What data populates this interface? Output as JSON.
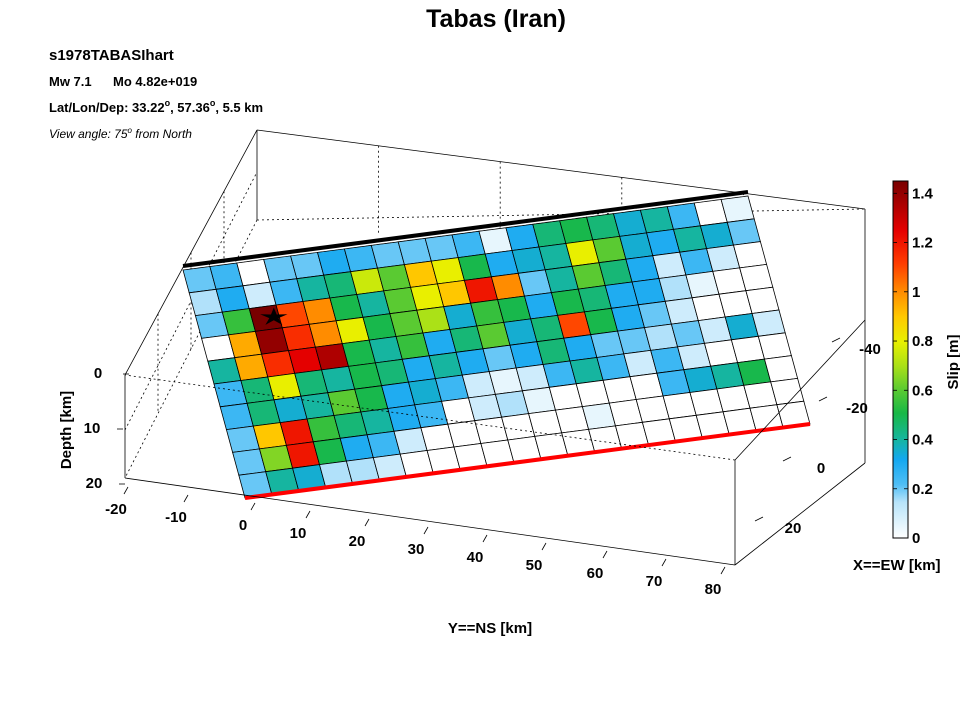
{
  "header": {
    "title": "Tabas (Iran)",
    "event_name": "s1978TABASIhart",
    "magnitude": "Mw 7.1",
    "moment": "Mo 4.82e+019",
    "location_prefix": "Lat/Lon/Dep: 33.22",
    "lat_sup": "o",
    "location_mid": ", 57.36",
    "lon_sup": "o",
    "location_suffix": ", 5.5 km",
    "view_prefix": "View angle:  75",
    "view_sup": "o",
    "view_suffix": " from North"
  },
  "colors": {
    "boundary_top": "#000000",
    "boundary_bottom": "#ff0000",
    "grid_line": "#000000"
  },
  "chart_data": {
    "type": "heatmap",
    "title": "Tabas (Iran)",
    "description_axes": {
      "x_label": "X==EW [km]",
      "y_label": "Y==NS [km]",
      "z_label": "Depth [km]"
    },
    "y_ns_ticks": [
      -20,
      -10,
      0,
      10,
      20,
      30,
      40,
      50,
      60,
      70,
      80
    ],
    "x_ew_ticks": [
      -40,
      -20,
      0,
      20
    ],
    "depth_ticks": [
      0,
      10,
      20
    ],
    "colorbar": {
      "label": "Slip [m]",
      "range": [
        0,
        1.45
      ],
      "ticks": [
        0,
        0.2,
        0.4,
        0.6,
        0.8,
        1,
        1.2,
        1.4
      ],
      "colormap": "white-blue-green-yellow-red"
    },
    "grid_columns": 21,
    "grid_rows": 10,
    "slip_m": [
      [
        0.2,
        0.25,
        0.0,
        0.2,
        0.2,
        0.3,
        0.25,
        0.2,
        0.2,
        0.2,
        0.25,
        0.05,
        0.3,
        0.45,
        0.5,
        0.45,
        0.35,
        0.4,
        0.25,
        0.0,
        0.05
      ],
      [
        0.15,
        0.3,
        0.1,
        0.25,
        0.4,
        0.45,
        0.75,
        0.6,
        0.9,
        0.8,
        0.5,
        0.3,
        0.35,
        0.4,
        0.8,
        0.6,
        0.35,
        0.3,
        0.4,
        0.35,
        0.2
      ],
      [
        0.2,
        0.55,
        1.45,
        1.1,
        1.0,
        0.5,
        0.4,
        0.6,
        0.8,
        0.9,
        1.2,
        1.0,
        0.2,
        0.4,
        0.6,
        0.45,
        0.3,
        0.1,
        0.25,
        0.1,
        0.0
      ],
      [
        0.0,
        0.95,
        1.4,
        1.15,
        1.0,
        0.8,
        0.5,
        0.6,
        0.7,
        0.35,
        0.55,
        0.5,
        0.3,
        0.5,
        0.45,
        0.3,
        0.3,
        0.15,
        0.05,
        0.0,
        0.0
      ],
      [
        0.4,
        0.95,
        1.15,
        1.25,
        1.35,
        0.5,
        0.4,
        0.55,
        0.3,
        0.45,
        0.6,
        0.35,
        0.45,
        1.1,
        0.5,
        0.3,
        0.2,
        0.1,
        0.0,
        0.0,
        0.0
      ],
      [
        0.25,
        0.45,
        0.8,
        0.45,
        0.4,
        0.5,
        0.45,
        0.3,
        0.4,
        0.3,
        0.2,
        0.3,
        0.45,
        0.3,
        0.2,
        0.2,
        0.15,
        0.2,
        0.1,
        0.35,
        0.1
      ],
      [
        0.25,
        0.45,
        0.35,
        0.4,
        0.6,
        0.5,
        0.3,
        0.35,
        0.25,
        0.1,
        0.05,
        0.1,
        0.25,
        0.4,
        0.25,
        0.1,
        0.25,
        0.1,
        0.0,
        0.0,
        0.0
      ],
      [
        0.2,
        0.9,
        1.2,
        0.55,
        0.45,
        0.4,
        0.3,
        0.25,
        0.0,
        0.1,
        0.15,
        0.05,
        0.0,
        0.0,
        0.0,
        0.0,
        0.25,
        0.35,
        0.4,
        0.5,
        0.0
      ],
      [
        0.2,
        0.65,
        1.2,
        0.5,
        0.3,
        0.25,
        0.1,
        0.0,
        0.0,
        0.0,
        0.0,
        0.0,
        0.0,
        0.05,
        0.0,
        0.0,
        0.0,
        0.0,
        0.0,
        0.0,
        0.0
      ],
      [
        0.2,
        0.4,
        0.35,
        0.15,
        0.15,
        0.1,
        0.0,
        0.0,
        0.0,
        0.0,
        0.0,
        0.0,
        0.0,
        0.0,
        0.0,
        0.0,
        0.0,
        0.0,
        0.0,
        0.0,
        0.0
      ]
    ],
    "hypocenter": {
      "row": 2,
      "col": 2.3
    },
    "top_edge_color": "black",
    "bottom_edge_color": "red",
    "grid": true
  }
}
